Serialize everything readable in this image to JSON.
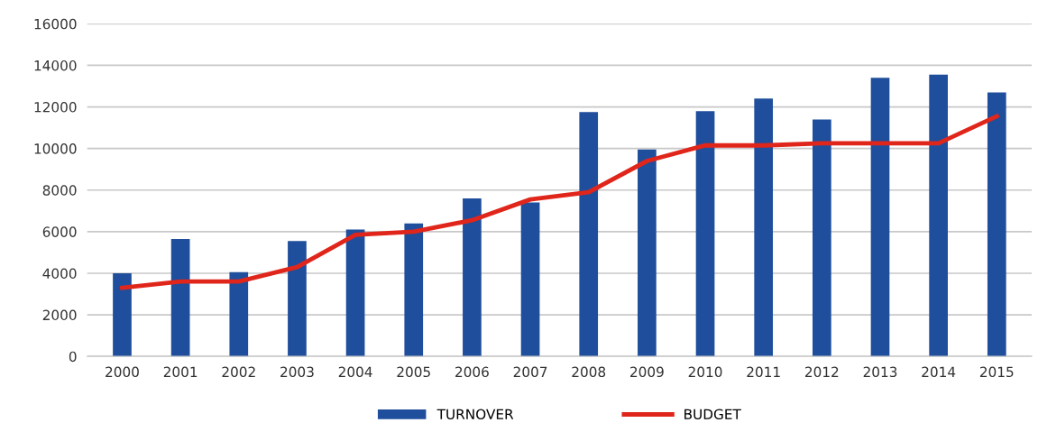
{
  "chart_data": {
    "type": "bar",
    "categories": [
      "2000",
      "2001",
      "2002",
      "2003",
      "2004",
      "2005",
      "2006",
      "2007",
      "2008",
      "2009",
      "2010",
      "2011",
      "2012",
      "2013",
      "2014",
      "2015"
    ],
    "series": [
      {
        "name": "TURNOVER",
        "color": "#1f4e9c",
        "values": [
          4000,
          5650,
          4050,
          5550,
          6100,
          6400,
          7600,
          7400,
          11750,
          9950,
          11800,
          12400,
          11400,
          13400,
          13550,
          12700
        ]
      },
      {
        "name": "BUDGET",
        "type": "line",
        "color": "#e0261b",
        "values": [
          3300,
          3600,
          3600,
          4300,
          5850,
          6000,
          6550,
          7550,
          7900,
          9400,
          10150,
          10150,
          10250,
          10250,
          10250,
          11550
        ]
      }
    ],
    "ylim": [
      0,
      16000
    ],
    "yticks": [
      0,
      2000,
      4000,
      6000,
      8000,
      10000,
      12000,
      14000,
      16000
    ],
    "grid": "y",
    "legend": "bottom",
    "marker": "none",
    "line_style": "solid"
  }
}
